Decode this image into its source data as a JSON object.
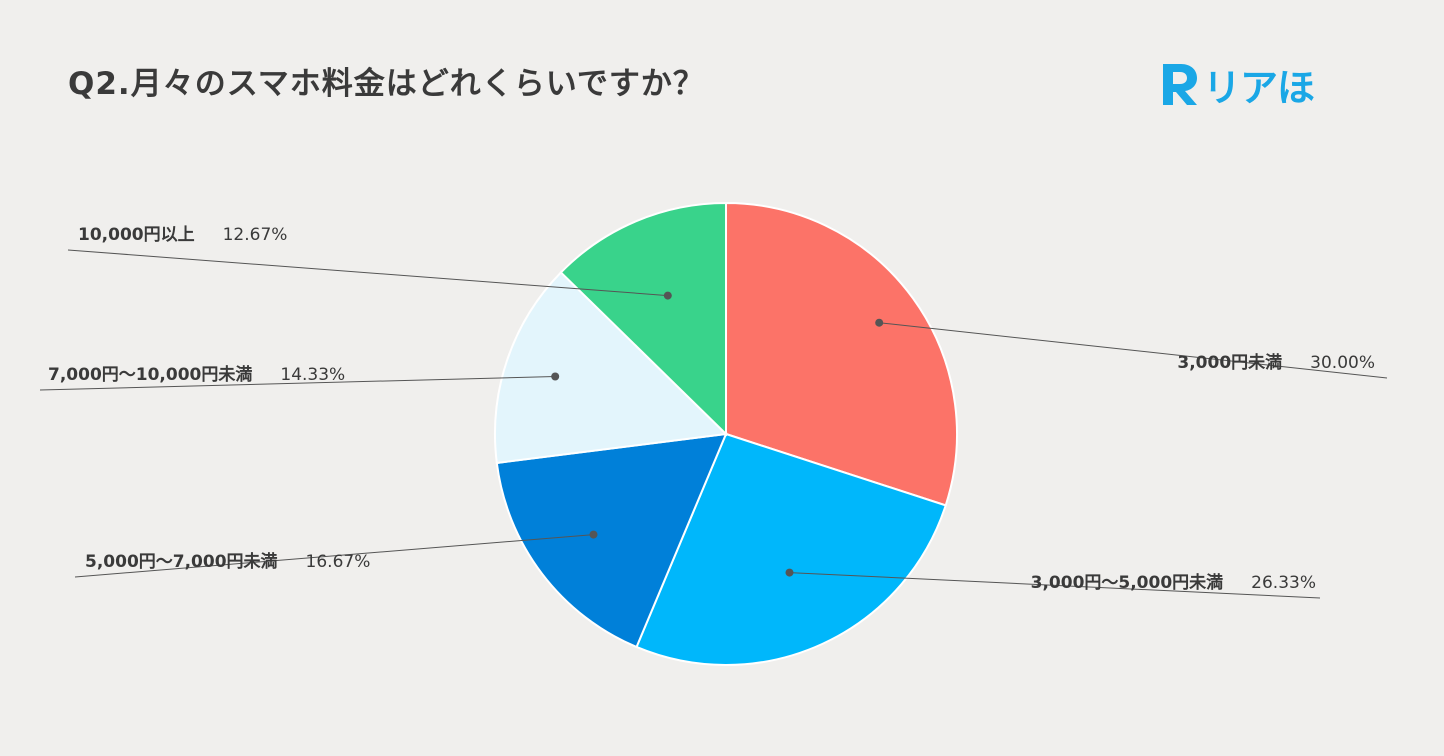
{
  "chart_data": {
    "type": "pie",
    "title": "Q2.月々のスマホ料金はどれくらいですか？",
    "start_angle_deg": 0,
    "direction": "clockwise",
    "slices": [
      {
        "label": "3,000円未満",
        "value": 30.0,
        "display": "30.00%",
        "color": "#fc7368"
      },
      {
        "label": "3,000円～5,000円未満",
        "value": 26.33,
        "display": "26.33%",
        "color": "#00b7fb"
      },
      {
        "label": "5,000円～7,000円未満",
        "value": 16.67,
        "display": "16.67%",
        "color": "#0080d9"
      },
      {
        "label": "7,000円～10,000円未満",
        "value": 14.33,
        "display": "14.33%",
        "color": "#e3f5fc"
      },
      {
        "label": "10,000円以上",
        "value": 12.67,
        "display": "12.67%",
        "color": "#39d38b"
      }
    ]
  },
  "brand": {
    "logo_text": "リアほ",
    "logo_mark": "R",
    "accent_color": "#1aa7e6"
  }
}
